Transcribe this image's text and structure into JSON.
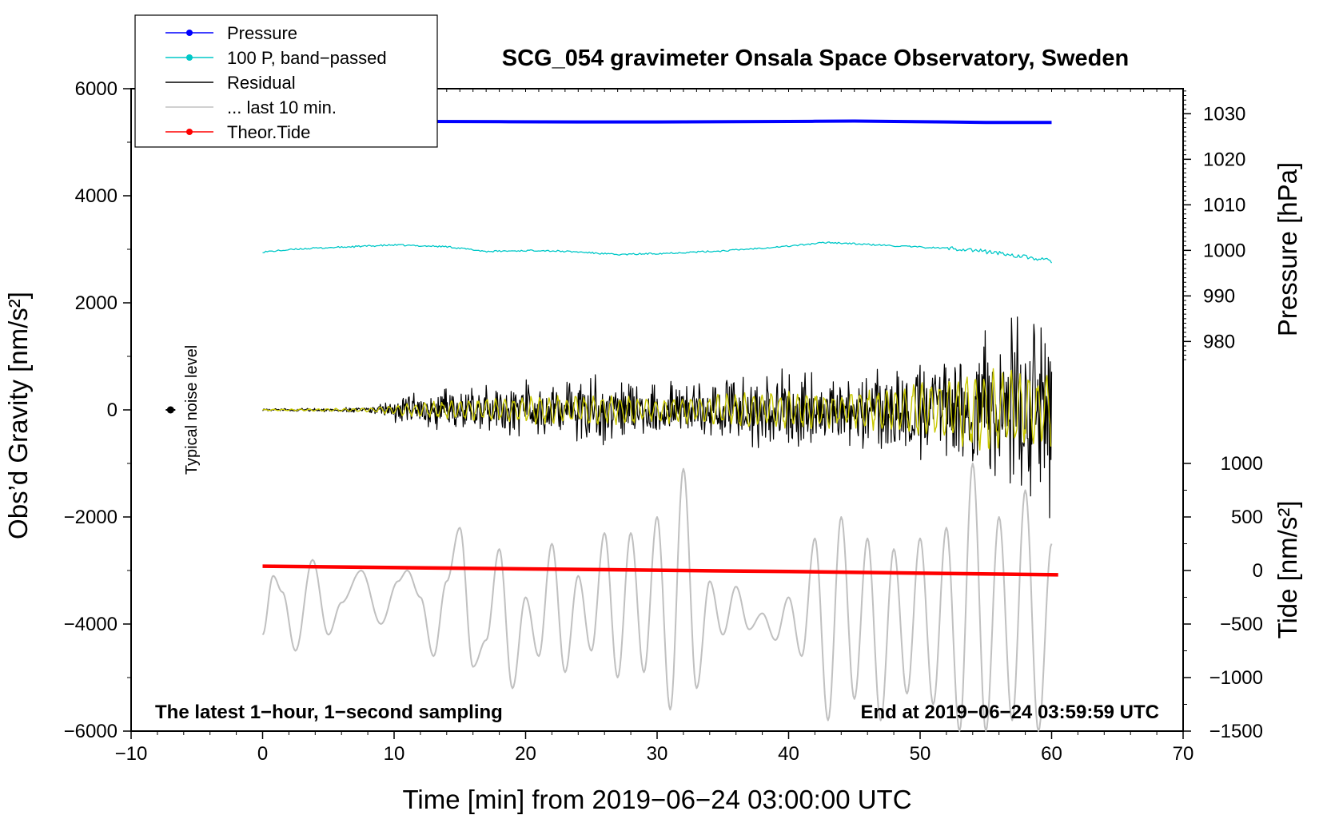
{
  "chart_data": {
    "type": "line",
    "title": "SCG_054 gravimeter Onsala Space Observatory, Sweden",
    "xlabel": "Time [min] from 2019−06−24 03:00:00 UTC",
    "ylabel_left": "Obs’d Gravity [nm/s²]",
    "ylabel_right_top": "Pressure [hPa]",
    "ylabel_right_bottom": "Tide [nm/s²]",
    "xlim": [
      -10,
      70
    ],
    "ylim_left": [
      -6000,
      6000
    ],
    "ylim_pressure": [
      975.5,
      1035.5
    ],
    "ylim_tide": [
      -1500,
      1000
    ],
    "x_ticks": [
      {
        "value": -10,
        "label": "−10"
      },
      {
        "value": 0,
        "label": "0"
      },
      {
        "value": 10,
        "label": "10"
      },
      {
        "value": 20,
        "label": "20"
      },
      {
        "value": 30,
        "label": "30"
      },
      {
        "value": 40,
        "label": "40"
      },
      {
        "value": 50,
        "label": "50"
      },
      {
        "value": 60,
        "label": "60"
      },
      {
        "value": 70,
        "label": "70"
      }
    ],
    "y_ticks_left": [
      {
        "value": 6000,
        "label": "6000"
      },
      {
        "value": 4000,
        "label": "4000"
      },
      {
        "value": 2000,
        "label": "2000"
      },
      {
        "value": 0,
        "label": "0"
      },
      {
        "value": -2000,
        "label": "−2000"
      },
      {
        "value": -4000,
        "label": "−4000"
      },
      {
        "value": -6000,
        "label": "−6000"
      }
    ],
    "y_ticks_pressure": [
      {
        "value": 1030,
        "label": "1030"
      },
      {
        "value": 1020,
        "label": "1020"
      },
      {
        "value": 1010,
        "label": "1010"
      },
      {
        "value": 1000,
        "label": "1000"
      },
      {
        "value": 990,
        "label": "990"
      },
      {
        "value": 980,
        "label": "980"
      }
    ],
    "y_ticks_tide": [
      {
        "value": 1000,
        "label": "1000"
      },
      {
        "value": 500,
        "label": "500"
      },
      {
        "value": 0,
        "label": "0"
      },
      {
        "value": -500,
        "label": "−500"
      },
      {
        "value": -1000,
        "label": "−1000"
      },
      {
        "value": -1500,
        "label": "−1500"
      }
    ],
    "legend": [
      {
        "label": "Pressure",
        "color": "#0000ff",
        "marker": true
      },
      {
        "label": "100 P, band−passed",
        "color": "#00c8c8",
        "marker": true
      },
      {
        "label": "Residual",
        "color": "#000000",
        "marker": false
      },
      {
        "label": "... last 10 min.",
        "color": "#c0c0c0",
        "marker": false
      },
      {
        "label": "Theor.Tide",
        "color": "#ff0000",
        "marker": true
      }
    ],
    "annotations": {
      "bottom_left": "The latest 1−hour, 1−second sampling",
      "bottom_right": "End at 2019−06−24 03:59:59 UTC",
      "noise_label": "Typical noise level"
    },
    "noise_point": {
      "x": -7,
      "y": 0
    },
    "series": [
      {
        "name": "Pressure",
        "axis": "pressure",
        "color": "#0000ff",
        "width": 4,
        "x": [
          0,
          6,
          12,
          18,
          24,
          27,
          30,
          36,
          40,
          42,
          45,
          48,
          52,
          55,
          60
        ],
        "y": [
          1028.3,
          1028.3,
          1028.3,
          1028.25,
          1028.2,
          1028.2,
          1028.2,
          1028.25,
          1028.3,
          1028.35,
          1028.4,
          1028.3,
          1028.2,
          1028.1,
          1028.1
        ]
      },
      {
        "name": "100 P, band−passed",
        "axis": "left",
        "color": "#00c8c8",
        "width": 1.3,
        "x": [
          0,
          3,
          6,
          10,
          14,
          17,
          21,
          24,
          27,
          31,
          35,
          40,
          43,
          46,
          50,
          53,
          56,
          60
        ],
        "y": [
          2950,
          3010,
          3040,
          3080,
          3050,
          2960,
          2980,
          2950,
          2900,
          2930,
          2970,
          3060,
          3130,
          3090,
          3040,
          3010,
          2930,
          2780
        ]
      },
      {
        "name": "Residual",
        "axis": "left",
        "color": "#000000",
        "width": 1.2,
        "x": [
          0,
          8,
          12,
          16,
          21,
          25,
          30,
          34,
          40,
          44,
          48,
          52,
          55,
          60
        ],
        "amplitude": [
          20,
          60,
          400,
          450,
          650,
          700,
          600,
          600,
          900,
          750,
          950,
          1200,
          1600,
          2300
        ]
      },
      {
        "name": "Residual (smoothed)",
        "axis": "left",
        "color": "#c8c800",
        "width": 1.4,
        "x": [
          0,
          8,
          12,
          16,
          21,
          25,
          30,
          34,
          40,
          44,
          48,
          52,
          55,
          60
        ],
        "amplitude": [
          10,
          40,
          150,
          200,
          280,
          300,
          260,
          280,
          400,
          330,
          430,
          650,
          800,
          700
        ]
      },
      {
        "name": "... last 10 min.",
        "axis": "left",
        "color": "#c0c0c0",
        "width": 2,
        "x": [
          0,
          0.8,
          1.5,
          2.5,
          3.8,
          5,
          6,
          7.5,
          9,
          10.3,
          11,
          12,
          13,
          14,
          15,
          16,
          17,
          18,
          19,
          20,
          21,
          22,
          23,
          24,
          25,
          26,
          27,
          28,
          29,
          30,
          31,
          32,
          33,
          34,
          35,
          36,
          37,
          38,
          39,
          40,
          41,
          42,
          43,
          44,
          45,
          46,
          47,
          48,
          49,
          50,
          51,
          52,
          53,
          54,
          55,
          56,
          57,
          58,
          59,
          60
        ],
        "y": [
          -4200,
          -3100,
          -3400,
          -4500,
          -2800,
          -4200,
          -3600,
          -3000,
          -4000,
          -3200,
          -3000,
          -3500,
          -4600,
          -3200,
          -2200,
          -4800,
          -4300,
          -2600,
          -5200,
          -3500,
          -4600,
          -2500,
          -4900,
          -3100,
          -4500,
          -2300,
          -5000,
          -2300,
          -4900,
          -2000,
          -5600,
          -1100,
          -5200,
          -3200,
          -4200,
          -3300,
          -4100,
          -3800,
          -4300,
          -3500,
          -4600,
          -2400,
          -5800,
          -2000,
          -5400,
          -2400,
          -5800,
          -2600,
          -5300,
          -2400,
          -5500,
          -2200,
          -6000,
          -1000,
          -6000,
          -2000,
          -5800,
          -1500,
          -6000,
          -2500
        ]
      },
      {
        "name": "Theor.Tide",
        "axis": "tide",
        "color": "#ff0000",
        "width": 4.5,
        "x": [
          0,
          20,
          40,
          60.5
        ],
        "y": [
          40,
          15,
          -10,
          -40
        ]
      }
    ]
  }
}
